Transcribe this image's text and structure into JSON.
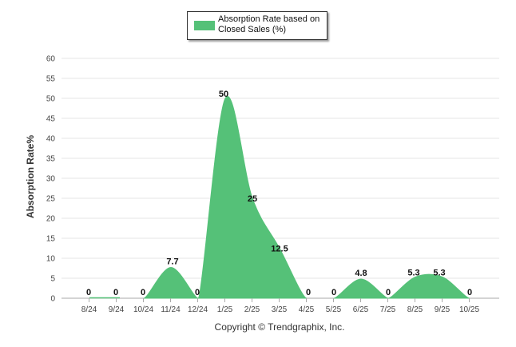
{
  "chart_data": {
    "type": "area",
    "legend": "Absorption Rate based on Closed Sales (%)",
    "legend_placement": "top-center",
    "ylabel": "Absorption Rate%",
    "xlabel": "",
    "categories": [
      "8/24",
      "9/24",
      "10/24",
      "11/24",
      "12/24",
      "1/25",
      "2/25",
      "3/25",
      "4/25",
      "5/25",
      "6/25",
      "7/25",
      "8/25",
      "9/25",
      "10/25"
    ],
    "series": [
      {
        "name": "Absorption Rate based on Closed Sales (%)",
        "values": [
          0,
          0,
          0,
          7.7,
          0,
          50,
          25,
          12.5,
          0,
          0,
          4.8,
          0,
          5.3,
          5.3,
          0
        ],
        "labels": [
          "0",
          "0",
          "0",
          "7.7",
          "0",
          "50",
          "25",
          "12.5",
          "0",
          "0",
          "4.8",
          "0",
          "5.3",
          "5.3",
          "0"
        ]
      }
    ],
    "ylim": [
      0,
      60
    ],
    "yticks": [
      0,
      5,
      10,
      15,
      20,
      25,
      30,
      35,
      40,
      45,
      50,
      55,
      60
    ],
    "grid": true,
    "color": "#55c178"
  },
  "footer": {
    "copyright": "Copyright © Trendgraphix, Inc."
  }
}
